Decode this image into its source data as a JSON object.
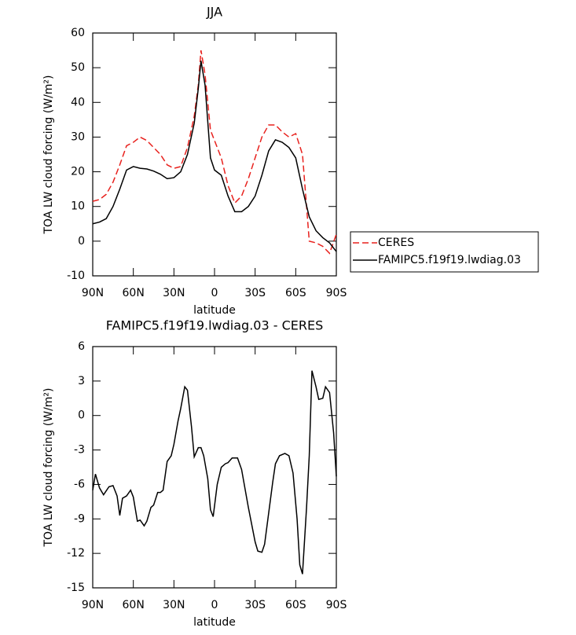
{
  "chart_data": [
    {
      "type": "line",
      "title": "JJA",
      "xlabel": "latitude",
      "ylabel": "TOA LW cloud forcing (W/m²)",
      "x": [
        90,
        85,
        80,
        75,
        70,
        65,
        60,
        55,
        50,
        45,
        40,
        35,
        30,
        25,
        20,
        15,
        12,
        10,
        7,
        3,
        0,
        -5,
        -10,
        -15,
        -20,
        -25,
        -30,
        -35,
        -40,
        -45,
        -50,
        -55,
        -60,
        -65,
        -70,
        -75,
        -80,
        -85,
        -90
      ],
      "series": [
        {
          "name": "CERES",
          "color": "#e8211d",
          "style": "dashed",
          "values": [
            11.5,
            12,
            13.5,
            17,
            22,
            27.5,
            28.5,
            30,
            29,
            27,
            25,
            22,
            21,
            21.5,
            27,
            36,
            45,
            55,
            48,
            32,
            29,
            24,
            16,
            11,
            13,
            18,
            24,
            30,
            33.5,
            33.5,
            31.5,
            30,
            31,
            25,
            0,
            -0.5,
            -1.5,
            -3.5,
            2
          ]
        },
        {
          "name": "FAMIPC5.f19f19.lwdiag.03",
          "color": "#000000",
          "style": "solid",
          "values": [
            5,
            5.5,
            6.5,
            10,
            15,
            20.5,
            21.5,
            21,
            20.8,
            20.2,
            19.3,
            18,
            18.3,
            20,
            25,
            34,
            44,
            52,
            45,
            24,
            20.5,
            19,
            13,
            8.5,
            8.5,
            10,
            13,
            19,
            26,
            29.2,
            28.5,
            27,
            24,
            15,
            7,
            3,
            1,
            -0.5,
            -3
          ]
        }
      ],
      "xlim": [
        90,
        -90
      ],
      "xticks": [
        {
          "value": 90,
          "label": "90N"
        },
        {
          "value": 60,
          "label": "60N"
        },
        {
          "value": 30,
          "label": "30N"
        },
        0,
        {
          "value": -30,
          "label": "30S"
        },
        {
          "value": -60,
          "label": "60S"
        },
        {
          "value": -90,
          "label": "90S"
        }
      ],
      "ylim": [
        -10,
        60
      ],
      "yticks": [
        -10,
        0,
        10,
        20,
        30,
        40,
        50,
        60
      ],
      "legend": "outside-right"
    },
    {
      "type": "line",
      "title": "FAMIPC5.f19f19.lwdiag.03 - CERES",
      "xlabel": "latitude",
      "ylabel": "TOA LW cloud forcing (W/m²)",
      "x": [
        90,
        88,
        85,
        82,
        78,
        75,
        72,
        70,
        68,
        65,
        62,
        60,
        57,
        55,
        52,
        50,
        47,
        45,
        42,
        40,
        38,
        35,
        32,
        30,
        27,
        25,
        22,
        20,
        17,
        15,
        12,
        10,
        8,
        5,
        3,
        1,
        -2,
        -5,
        -8,
        -10,
        -13,
        -17,
        -20,
        -25,
        -30,
        -32,
        -35,
        -37,
        -40,
        -43,
        -45,
        -48,
        -52,
        -55,
        -58,
        -61,
        -63,
        -65,
        -68,
        -70,
        -72,
        -75,
        -77,
        -80,
        -82,
        -85,
        -88,
        -90
      ],
      "values": [
        -6.5,
        -5.1,
        -6.3,
        -6.9,
        -6.2,
        -6.1,
        -7,
        -8.7,
        -7.2,
        -7,
        -6.5,
        -7.1,
        -9.2,
        -9.1,
        -9.6,
        -9.2,
        -8,
        -7.8,
        -6.7,
        -6.7,
        -6.5,
        -4,
        -3.5,
        -2.5,
        -0.5,
        0.6,
        2.5,
        2.2,
        -1,
        -3.6,
        -2.8,
        -2.8,
        -3.5,
        -5.5,
        -8.2,
        -8.8,
        -6,
        -4.5,
        -4.2,
        -4.1,
        -3.7,
        -3.7,
        -4.7,
        -8,
        -11,
        -11.8,
        -11.9,
        -11.2,
        -8.5,
        -5.8,
        -4.2,
        -3.5,
        -3.3,
        -3.5,
        -5,
        -9,
        -13,
        -13.8,
        -8,
        -3.5,
        3.9,
        2.5,
        1.4,
        1.5,
        2.5,
        2,
        -1.5,
        -5.3
      ],
      "color": "#000000",
      "xlim": [
        90,
        -90
      ],
      "xticks": [
        {
          "value": 90,
          "label": "90N"
        },
        {
          "value": 60,
          "label": "60N"
        },
        {
          "value": 30,
          "label": "30N"
        },
        0,
        {
          "value": -30,
          "label": "30S"
        },
        {
          "value": -60,
          "label": "60S"
        },
        {
          "value": -90,
          "label": "90S"
        }
      ],
      "ylim": [
        -15,
        6
      ],
      "yticks": [
        -15,
        -12,
        -9,
        -6,
        -3,
        0,
        3,
        6
      ]
    }
  ]
}
